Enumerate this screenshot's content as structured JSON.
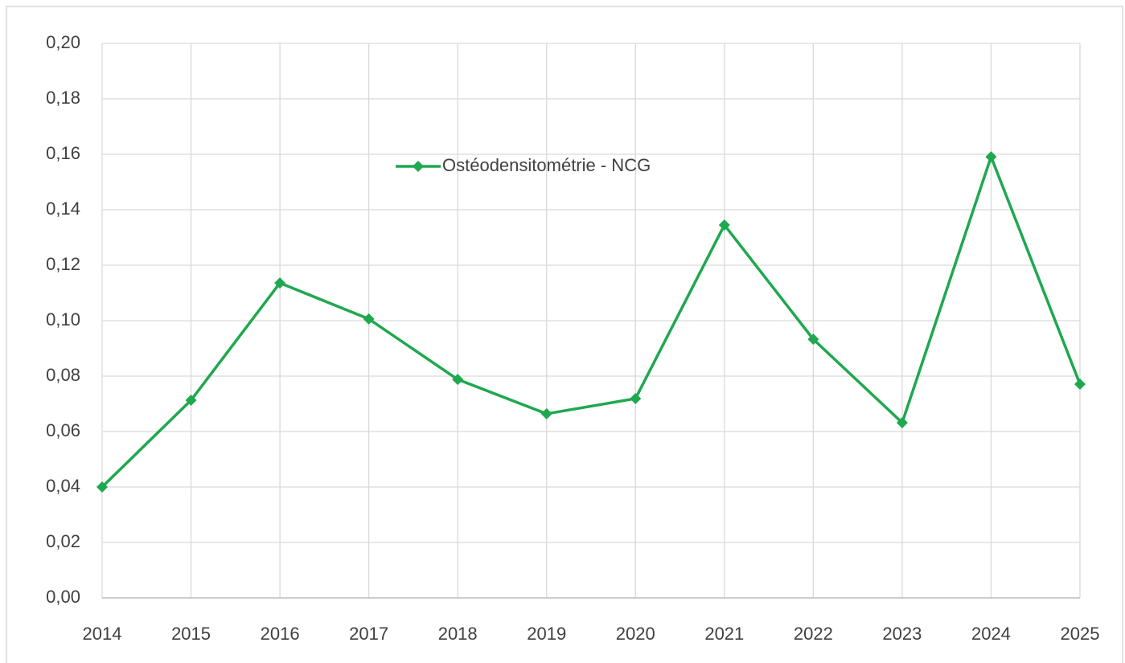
{
  "chart_data": {
    "type": "line",
    "x": [
      2014,
      2015,
      2016,
      2017,
      2018,
      2019,
      2020,
      2021,
      2022,
      2023,
      2024,
      2025
    ],
    "xlim": [
      2014,
      2025
    ],
    "xticks": [
      2014,
      2015,
      2016,
      2017,
      2018,
      2019,
      2020,
      2021,
      2022,
      2023,
      2024,
      2025
    ],
    "series": [
      {
        "name": "Ostéodensitométrie - NCG",
        "color": "#1fa84f",
        "values": [
          0.04,
          0.0713,
          0.1136,
          0.1006,
          0.0788,
          0.0664,
          0.0719,
          0.1345,
          0.0933,
          0.0632,
          0.1591,
          0.0771
        ]
      }
    ],
    "ylim": [
      0,
      0.2
    ],
    "yticks": [
      {
        "value": 0,
        "label": "0,00"
      },
      {
        "value": 0.02,
        "label": "0,02"
      },
      {
        "value": 0.04,
        "label": "0,04"
      },
      {
        "value": 0.06,
        "label": "0,06"
      },
      {
        "value": 0.08,
        "label": "0,08"
      },
      {
        "value": 0.1,
        "label": "0,10"
      },
      {
        "value": 0.12,
        "label": "0,12"
      },
      {
        "value": 0.14,
        "label": "0,14"
      },
      {
        "value": 0.16,
        "label": "0,16"
      },
      {
        "value": 0.18,
        "label": "0,18"
      },
      {
        "value": 0.2,
        "label": "0,20"
      }
    ],
    "grid": true,
    "legend": "top"
  }
}
